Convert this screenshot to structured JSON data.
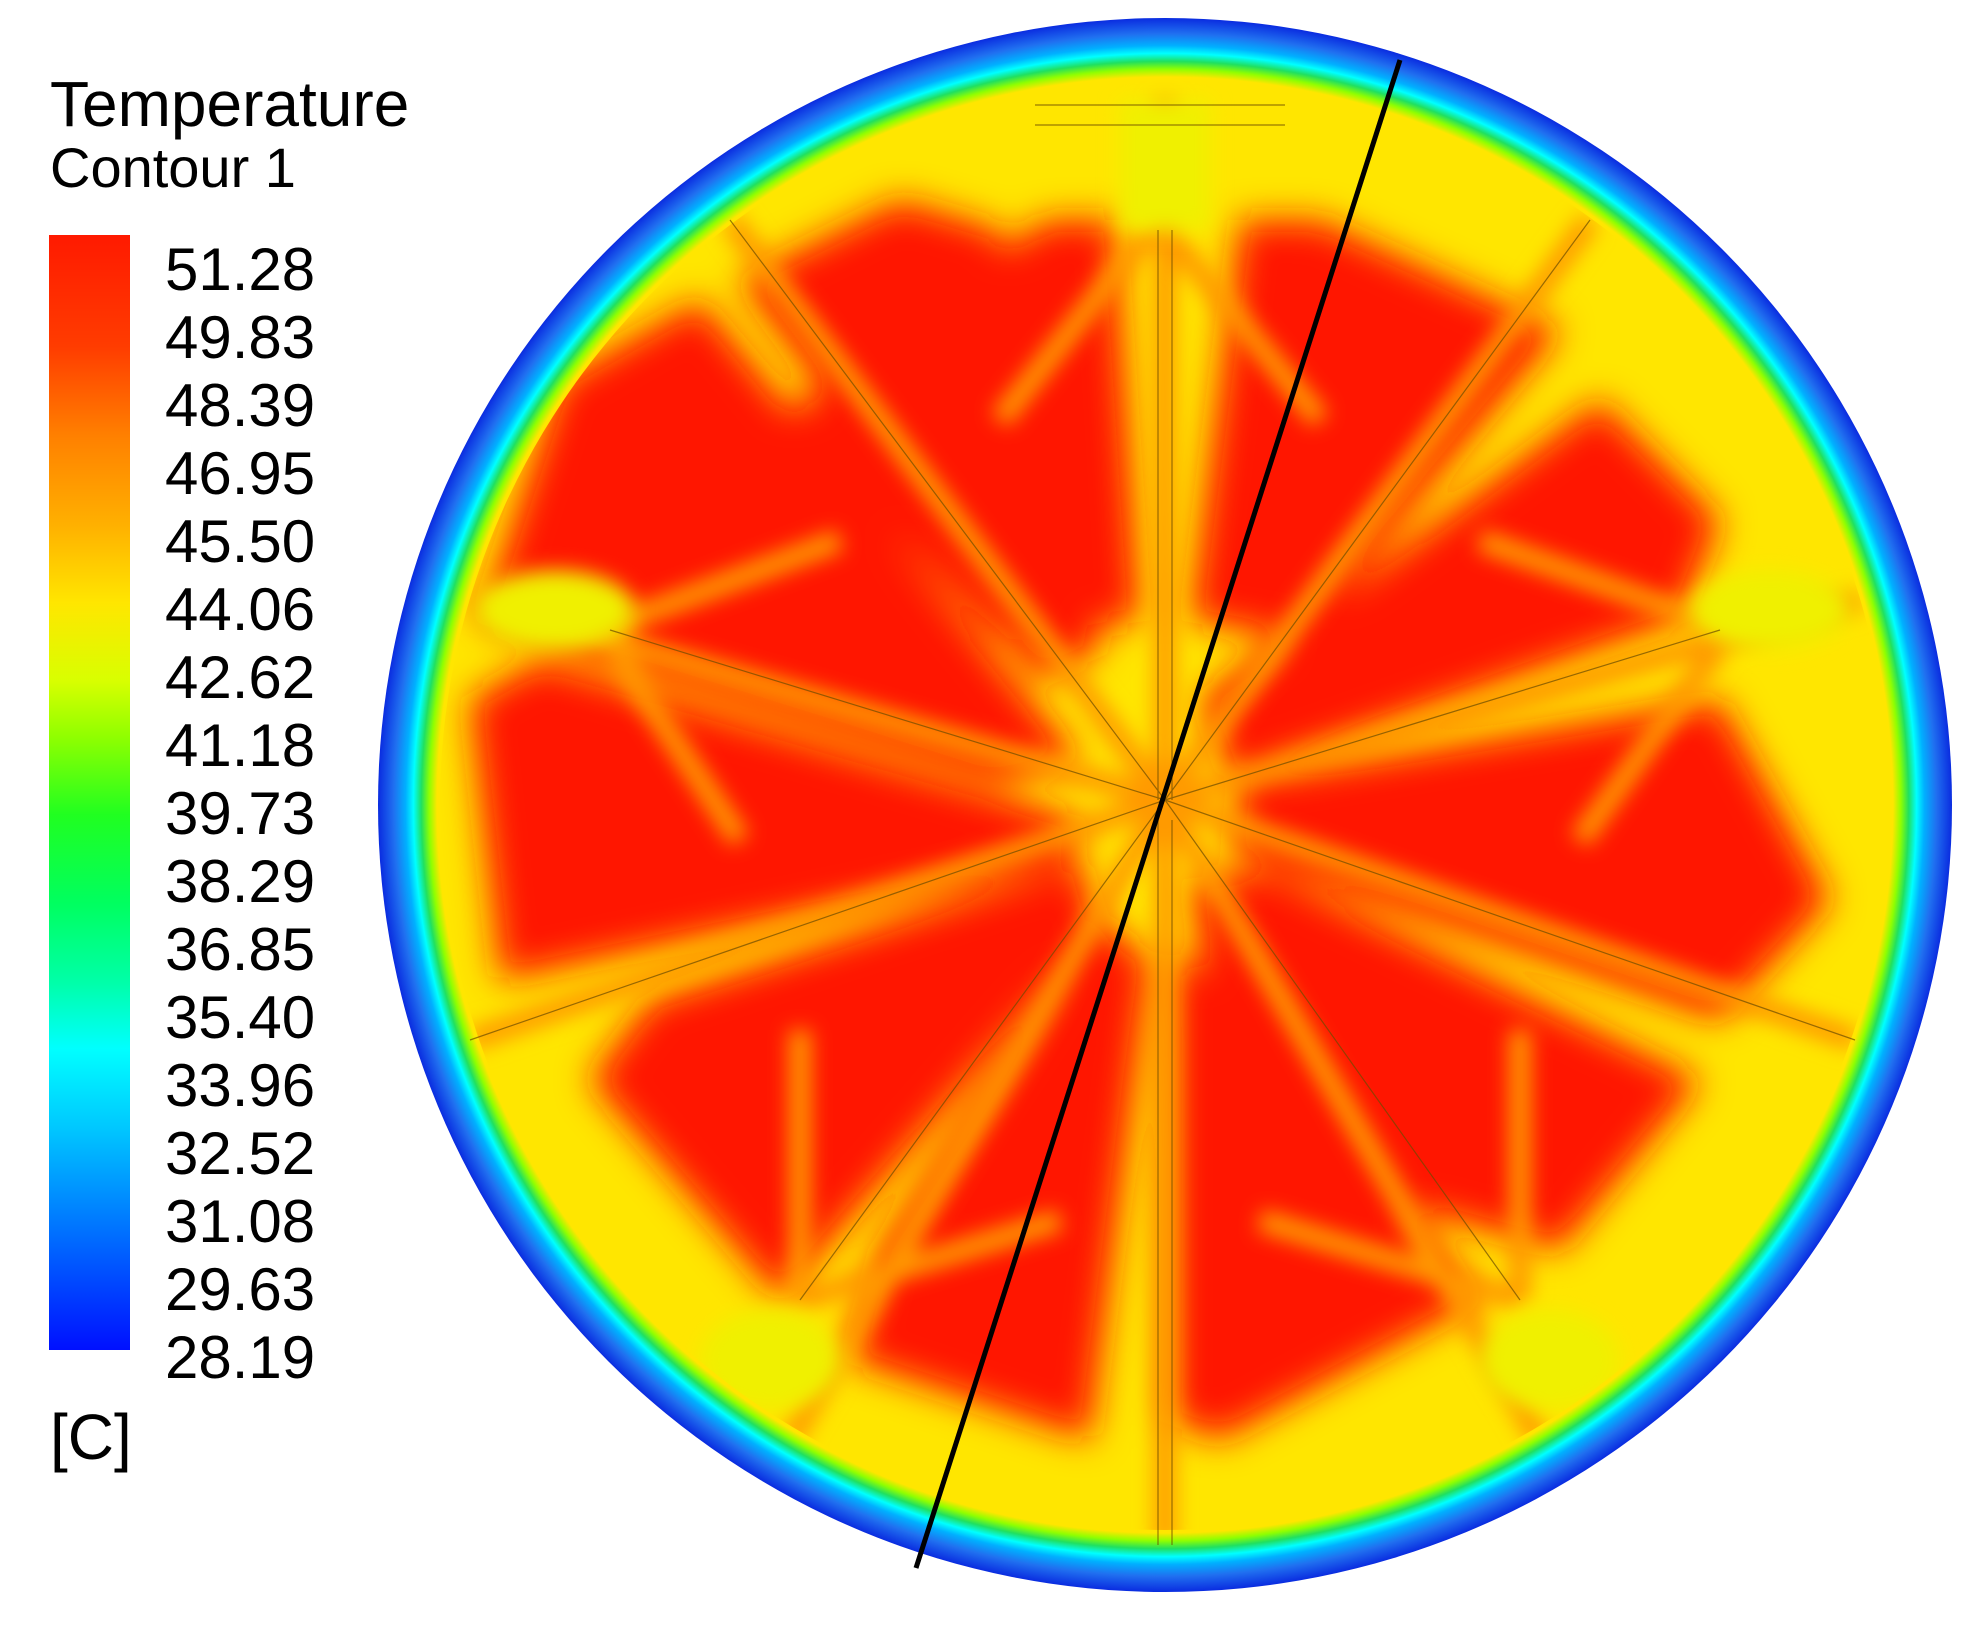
{
  "legend": {
    "title": "Temperature",
    "subtitle": "Contour 1",
    "unit": "[C]",
    "ticks": [
      "51.28",
      "49.83",
      "48.39",
      "46.95",
      "45.50",
      "44.06",
      "42.62",
      "41.18",
      "39.73",
      "38.29",
      "36.85",
      "35.40",
      "33.96",
      "32.52",
      "31.08",
      "29.63",
      "28.19"
    ],
    "colors": {
      "max": "#ff1a00",
      "mid": "#ffe600",
      "green": "#20ff20",
      "cyan": "#00ffff",
      "min": "#0010ff"
    }
  }
}
